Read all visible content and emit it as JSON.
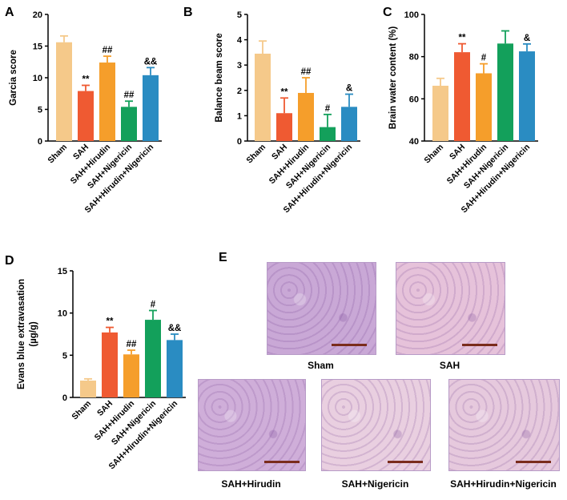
{
  "charts": [
    {
      "letter": "A",
      "chart_data": {
        "type": "bar",
        "ylabel": "Garcia score",
        "ylim": [
          0,
          20
        ],
        "yticks": [
          "0",
          "5",
          "10",
          "15",
          "20"
        ],
        "categories": [
          "Sham",
          "SAH",
          "SAH+Hirudin",
          "SAH+Nigericin",
          "SAH+Hirudin+Nigericin"
        ],
        "values": [
          15.6,
          7.9,
          12.4,
          5.4,
          10.4
        ],
        "errors": [
          1.0,
          0.9,
          1.0,
          0.9,
          1.2
        ],
        "annotations": [
          "",
          "**",
          "##",
          "##",
          "&&"
        ],
        "colors": [
          "#f5c98a",
          "#ef5a32",
          "#f59e2b",
          "#13a05b",
          "#2a8cc2"
        ]
      }
    },
    {
      "letter": "B",
      "chart_data": {
        "type": "bar",
        "ylabel": "Balance beam score",
        "ylim": [
          0,
          5
        ],
        "yticks": [
          "0",
          "1",
          "2",
          "3",
          "4",
          "5"
        ],
        "categories": [
          "Sham",
          "SAH",
          "SAH+Hirudin",
          "SAH+Nigericin",
          "SAH+Hirudin+Nigericin"
        ],
        "values": [
          3.45,
          1.1,
          1.9,
          0.55,
          1.35
        ],
        "errors": [
          0.5,
          0.6,
          0.6,
          0.5,
          0.5
        ],
        "annotations": [
          "",
          "**",
          "##",
          "#",
          "&"
        ],
        "colors": [
          "#f5c98a",
          "#ef5a32",
          "#f59e2b",
          "#13a05b",
          "#2a8cc2"
        ]
      }
    },
    {
      "letter": "C",
      "chart_data": {
        "type": "bar",
        "ylabel": "Brain water content (%)",
        "ylim": [
          40,
          100
        ],
        "yticks": [
          "40",
          "60",
          "80",
          "100"
        ],
        "categories": [
          "Sham",
          "SAH",
          "SAH+Hirudin",
          "SAH+Nigericin",
          "SAH+Hirudin+Nigericin"
        ],
        "values": [
          66.2,
          82.1,
          72.1,
          86.2,
          82.5
        ],
        "errors": [
          3.5,
          4.0,
          4.5,
          6.0,
          3.5
        ],
        "annotations": [
          "",
          "**",
          "#",
          "",
          "&"
        ],
        "colors": [
          "#f5c98a",
          "#ef5a32",
          "#f59e2b",
          "#13a05b",
          "#2a8cc2"
        ]
      }
    },
    {
      "letter": "D",
      "chart_data": {
        "type": "bar",
        "ylabel": "Evans blue extravasation (µg/g)",
        "ylim": [
          0,
          15
        ],
        "yticks": [
          "0",
          "5",
          "10",
          "15"
        ],
        "categories": [
          "Sham",
          "SAH",
          "SAH+Hirudin",
          "SAH+Nigericin",
          "SAH+Hirudin+Nigericin"
        ],
        "values": [
          2.0,
          7.7,
          5.1,
          9.2,
          6.8
        ],
        "errors": [
          0.2,
          0.6,
          0.5,
          1.1,
          0.7
        ],
        "annotations": [
          "",
          "**",
          "##",
          "#",
          "&&"
        ],
        "colors": [
          "#f5c98a",
          "#ef5a32",
          "#f59e2b",
          "#13a05b",
          "#2a8cc2"
        ]
      }
    }
  ],
  "panel_e": {
    "letter": "E",
    "images": [
      {
        "label": "Sham",
        "tint": "#c9a8d6"
      },
      {
        "label": "SAH",
        "tint": "#e6c2da"
      },
      {
        "label": "SAH+Hirudin",
        "tint": "#cfaed9"
      },
      {
        "label": "SAH+Nigericin",
        "tint": "#e9cfe0"
      },
      {
        "label": "SAH+Hirudin+Nigericin",
        "tint": "#e6c9dd"
      }
    ]
  }
}
